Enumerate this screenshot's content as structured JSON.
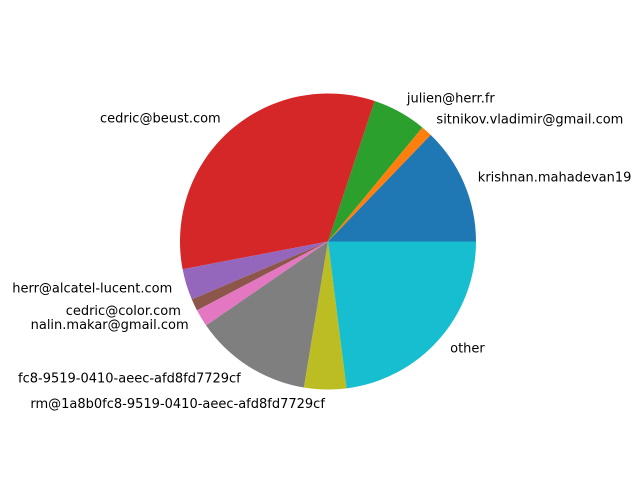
{
  "chart_data": {
    "type": "pie",
    "title": "",
    "start_angle_deg": 0,
    "direction": "counterclockwise",
    "legend": "none",
    "slices": [
      {
        "label": "krishnan.mahadevan19",
        "value": 12.8,
        "color": "#1f77b4"
      },
      {
        "label": "sitnikov.vladimir@gmail.com",
        "value": 1.2,
        "color": "#ff7f0e"
      },
      {
        "label": "julien@herr.fr",
        "value": 5.9,
        "color": "#2ca02c"
      },
      {
        "label": "cedric@beust.com",
        "value": 33.1,
        "color": "#d62728"
      },
      {
        "label": "herr@alcatel-lucent.com",
        "value": 3.4,
        "color": "#9467bd"
      },
      {
        "label": "cedric@color.com",
        "value": 1.3,
        "color": "#8c564b"
      },
      {
        "label": "nalin.makar@gmail.com",
        "value": 1.9,
        "color": "#e377c2"
      },
      {
        "label": "fc8-9519-0410-aeec-afd8fd7729cf",
        "value": 12.8,
        "color": "#7f7f7f"
      },
      {
        "label": "rm@1a8b0fc8-9519-0410-aeec-afd8fd7729cf",
        "value": 4.6,
        "color": "#bcbd22"
      },
      {
        "label": "other",
        "value": 23.0,
        "color": "#17becf"
      }
    ]
  }
}
